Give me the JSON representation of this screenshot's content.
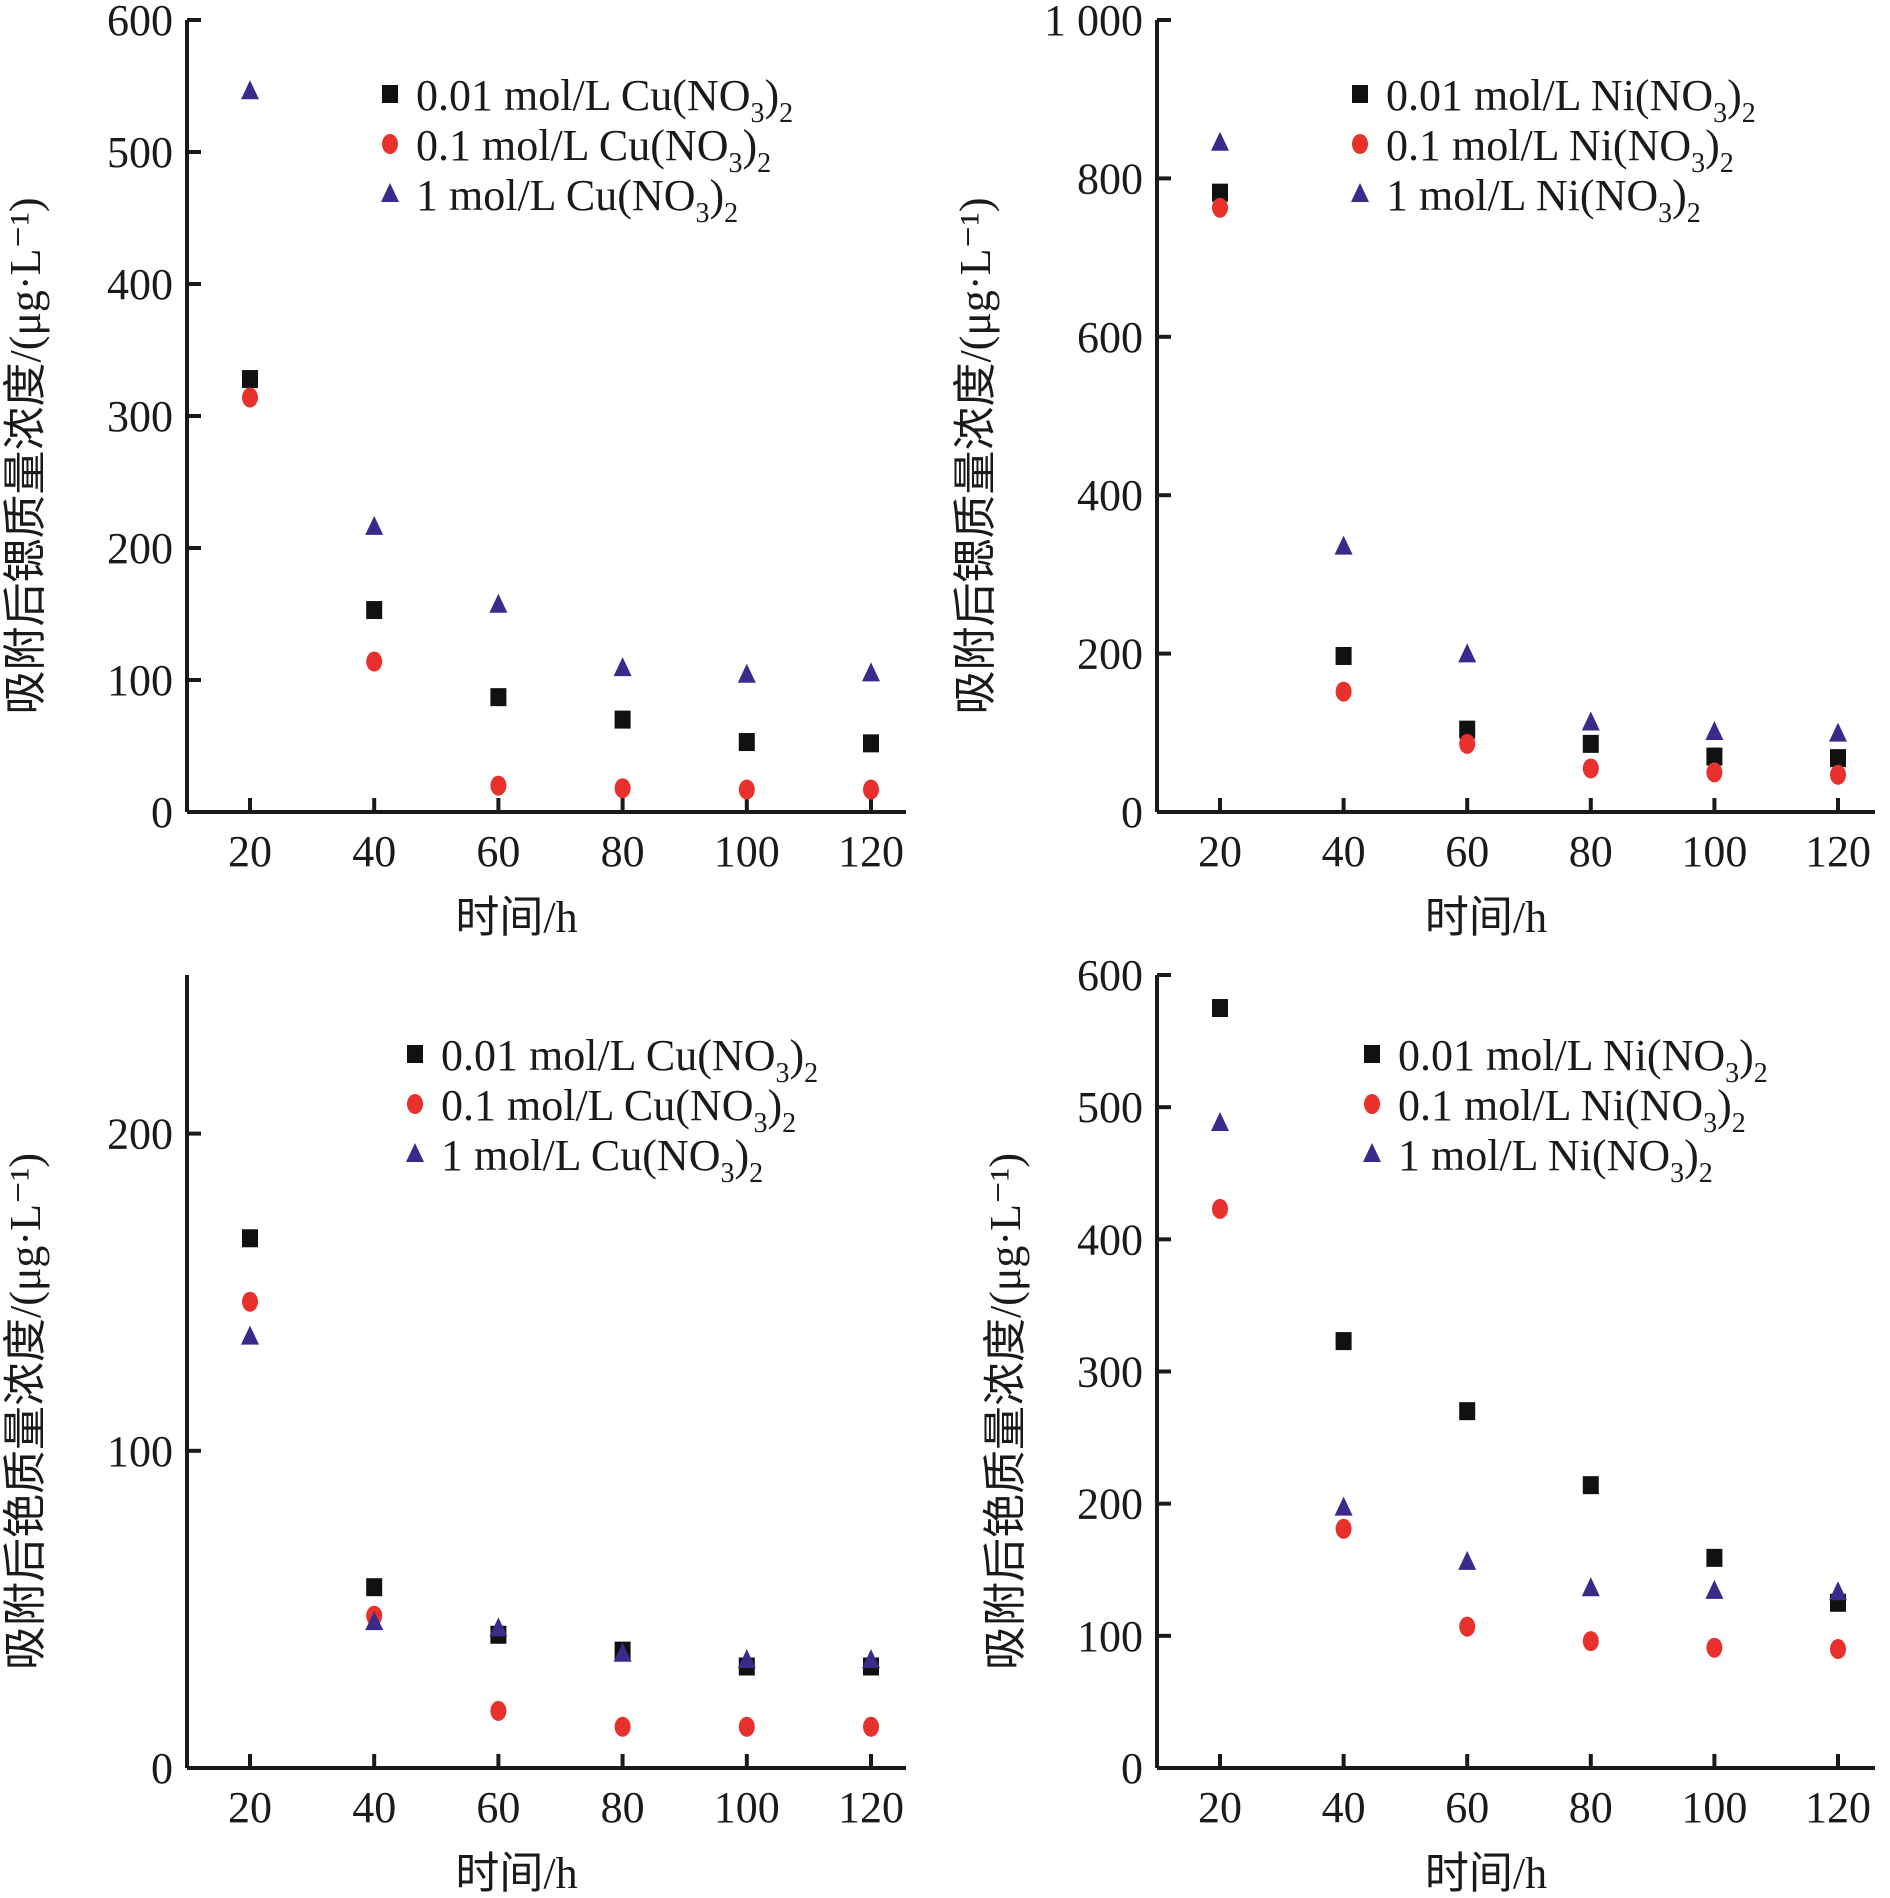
{
  "chart_data": [
    {
      "type": "scatter",
      "x": [
        20,
        40,
        60,
        80,
        100,
        120
      ],
      "xticks": [
        "20",
        "40",
        "60",
        "80",
        "100",
        "120"
      ],
      "yticks": [
        "0",
        "100",
        "200",
        "300",
        "400",
        "500",
        "600"
      ],
      "ylim": [
        0,
        600
      ],
      "xlabel": "时间/h",
      "ylabel": "吸附后锶质量浓度/(μg·L⁻¹)",
      "legend_position": "top-right",
      "series": [
        {
          "label": [
            "0.01 mol/L Cu(NO",
            "3",
            ")",
            "2"
          ],
          "marker": "square",
          "color": "#111111",
          "values": [
            328,
            153,
            87,
            70,
            53,
            52
          ]
        },
        {
          "label": [
            "0.1 mol/L Cu(NO",
            "3",
            ")",
            "2"
          ],
          "marker": "circle",
          "color": "#e8302c",
          "values": [
            314,
            114,
            20,
            18,
            17,
            17
          ]
        },
        {
          "label": [
            "1 mol/L Cu(NO",
            "3",
            ")",
            "2"
          ],
          "marker": "triangle",
          "color": "#3a2a8a",
          "values": [
            546,
            216,
            157,
            109,
            104,
            105
          ]
        }
      ]
    },
    {
      "type": "scatter",
      "x": [
        20,
        40,
        60,
        80,
        100,
        120
      ],
      "xticks": [
        "20",
        "40",
        "60",
        "80",
        "100",
        "120"
      ],
      "yticks": [
        "0",
        "200",
        "400",
        "600",
        "800",
        "1 000"
      ],
      "ylim": [
        0,
        1000
      ],
      "xlabel": "时间/h",
      "ylabel": "吸附后锶质量浓度/(μg·L⁻¹)",
      "legend_position": "top-right",
      "series": [
        {
          "label": [
            "0.01 mol/L Ni(NO",
            "3",
            ")",
            "2"
          ],
          "marker": "square",
          "color": "#111111",
          "values": [
            782,
            197,
            104,
            86,
            70,
            68
          ]
        },
        {
          "label": [
            "0.1 mol/L Ni(NO",
            "3",
            ")",
            "2"
          ],
          "marker": "circle",
          "color": "#e8302c",
          "values": [
            763,
            152,
            86,
            55,
            50,
            47
          ]
        },
        {
          "label": [
            "1 mol/L Ni(NO",
            "3",
            ")",
            "2"
          ],
          "marker": "triangle",
          "color": "#3a2a8a",
          "values": [
            845,
            335,
            199,
            113,
            101,
            99
          ]
        }
      ]
    },
    {
      "type": "scatter",
      "x": [
        20,
        40,
        60,
        80,
        100,
        120
      ],
      "xticks": [
        "20",
        "40",
        "60",
        "80",
        "100",
        "120"
      ],
      "yticks": [
        "0",
        "100",
        "200"
      ],
      "ylim": [
        0,
        250
      ],
      "xlabel": "时间/h",
      "ylabel": "吸附后铯质量浓度/(μg·L⁻¹)",
      "legend_position": "top-right",
      "series": [
        {
          "label": [
            "0.01 mol/L Cu(NO",
            "3",
            ")",
            "2"
          ],
          "marker": "square",
          "color": "#111111",
          "values": [
            167,
            57,
            42,
            37,
            32,
            32
          ]
        },
        {
          "label": [
            "0.1 mol/L Cu(NO",
            "3",
            ")",
            "2"
          ],
          "marker": "circle",
          "color": "#e8302c",
          "values": [
            147,
            48,
            18,
            13,
            13,
            13
          ]
        },
        {
          "label": [
            "1 mol/L Cu(NO",
            "3",
            ")",
            "2"
          ],
          "marker": "triangle",
          "color": "#3a2a8a",
          "values": [
            136,
            46,
            44,
            36,
            34,
            34
          ]
        }
      ]
    },
    {
      "type": "scatter",
      "x": [
        20,
        40,
        60,
        80,
        100,
        120
      ],
      "xticks": [
        "20",
        "40",
        "60",
        "80",
        "100",
        "120"
      ],
      "yticks": [
        "0",
        "100",
        "200",
        "300",
        "400",
        "500",
        "600"
      ],
      "ylim": [
        0,
        600
      ],
      "xlabel": "时间/h",
      "ylabel": "吸附后铯质量浓度/(μg·L⁻¹)",
      "legend_position": "top-right",
      "series": [
        {
          "label": [
            "0.01 mol/L Ni(NO",
            "3",
            ")",
            "2"
          ],
          "marker": "square",
          "color": "#111111",
          "values": [
            575,
            323,
            270,
            214,
            159,
            125
          ]
        },
        {
          "label": [
            "0.1 mol/L Ni(NO",
            "3",
            ")",
            "2"
          ],
          "marker": "circle",
          "color": "#e8302c",
          "values": [
            423,
            181,
            107,
            96,
            91,
            90
          ]
        },
        {
          "label": [
            "1 mol/L Ni(NO",
            "3",
            ")",
            "2"
          ],
          "marker": "triangle",
          "color": "#3a2a8a",
          "values": [
            488,
            197,
            156,
            136,
            134,
            133
          ]
        }
      ]
    }
  ]
}
